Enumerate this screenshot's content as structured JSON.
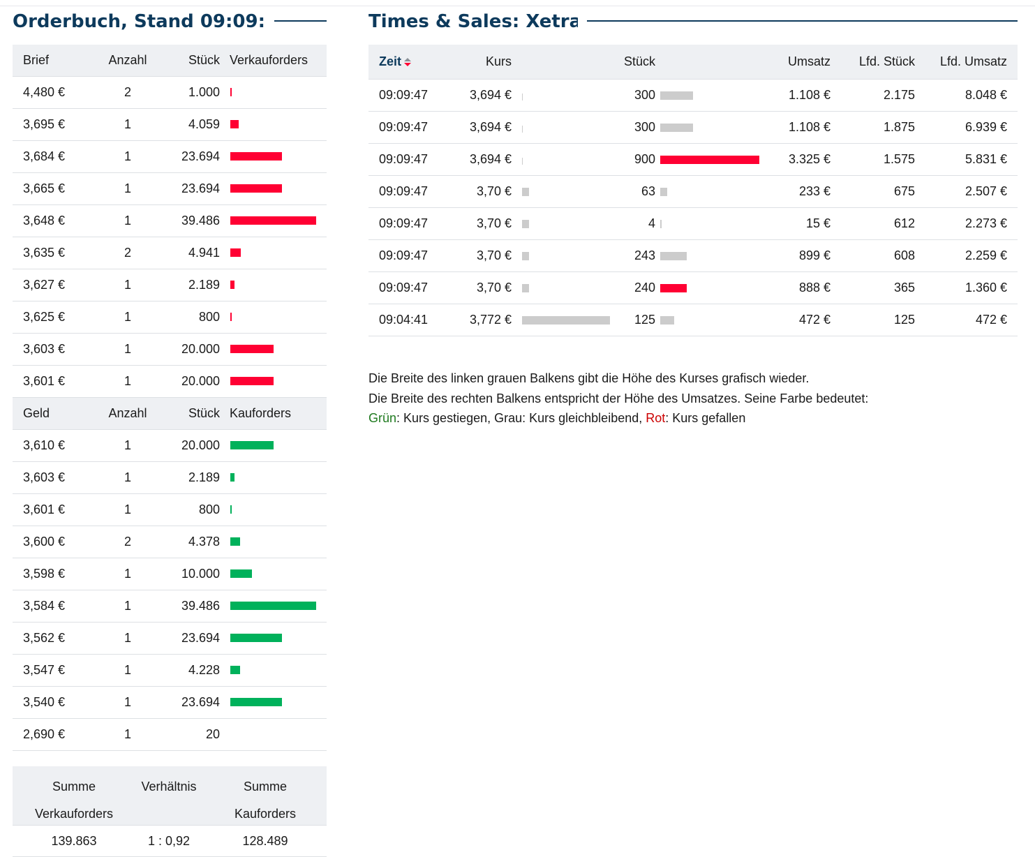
{
  "orderbook": {
    "title": "Orderbuch, Stand 09:09:...",
    "ask_header": {
      "price": "Brief",
      "count": "Anzahl",
      "qty": "Stück",
      "orders": "Verkauforders"
    },
    "asks": [
      {
        "price": "4,480 €",
        "count": "2",
        "qty": "1.000",
        "bar": 0.01
      },
      {
        "price": "3,695 €",
        "count": "1",
        "qty": "4.059",
        "bar": 0.1
      },
      {
        "price": "3,684 €",
        "count": "1",
        "qty": "23.694",
        "bar": 0.6
      },
      {
        "price": "3,665 €",
        "count": "1",
        "qty": "23.694",
        "bar": 0.6
      },
      {
        "price": "3,648 €",
        "count": "1",
        "qty": "39.486",
        "bar": 1.0
      },
      {
        "price": "3,635 €",
        "count": "2",
        "qty": "4.941",
        "bar": 0.12
      },
      {
        "price": "3,627 €",
        "count": "1",
        "qty": "2.189",
        "bar": 0.05
      },
      {
        "price": "3,625 €",
        "count": "1",
        "qty": "800",
        "bar": 0.01
      },
      {
        "price": "3,603 €",
        "count": "1",
        "qty": "20.000",
        "bar": 0.5
      },
      {
        "price": "3,601 €",
        "count": "1",
        "qty": "20.000",
        "bar": 0.5
      }
    ],
    "bid_header": {
      "price": "Geld",
      "count": "Anzahl",
      "qty": "Stück",
      "orders": "Kauforders"
    },
    "bids": [
      {
        "price": "3,610 €",
        "count": "1",
        "qty": "20.000",
        "bar": 0.5
      },
      {
        "price": "3,603 €",
        "count": "1",
        "qty": "2.189",
        "bar": 0.05
      },
      {
        "price": "3,601 €",
        "count": "1",
        "qty": "800",
        "bar": 0.01
      },
      {
        "price": "3,600 €",
        "count": "2",
        "qty": "4.378",
        "bar": 0.11
      },
      {
        "price": "3,598 €",
        "count": "1",
        "qty": "10.000",
        "bar": 0.25
      },
      {
        "price": "3,584 €",
        "count": "1",
        "qty": "39.486",
        "bar": 1.0
      },
      {
        "price": "3,562 €",
        "count": "1",
        "qty": "23.694",
        "bar": 0.6
      },
      {
        "price": "3,547 €",
        "count": "1",
        "qty": "4.228",
        "bar": 0.11
      },
      {
        "price": "3,540 €",
        "count": "1",
        "qty": "23.694",
        "bar": 0.6
      },
      {
        "price": "2,690 €",
        "count": "1",
        "qty": "20",
        "bar": 0
      }
    ],
    "summary": {
      "sum_sell_label_1": "Summe",
      "sum_sell_label_2": "Verkauforders",
      "ratio_label": "Verhältnis",
      "sum_buy_label_1": "Summe",
      "sum_buy_label_2": "Kauforders",
      "sum_sell": "139.863",
      "ratio": "1 : 0,92",
      "sum_buy": "128.489"
    }
  },
  "times_sales": {
    "title": "Times & Sales: Xetra",
    "header": {
      "time": "Zeit",
      "price": "Kurs",
      "qty": "Stück",
      "turnover": "Umsatz",
      "cum_qty": "Lfd. Stück",
      "cum_turnover": "Lfd. Umsatz"
    },
    "rows": [
      {
        "time": "09:09:47",
        "price": "3,694 €",
        "price_bar": 0.01,
        "qty": "300",
        "qty_bar": 0.33,
        "qty_color": "grey",
        "turnover": "1.108 €",
        "cum_qty": "2.175",
        "cum_turnover": "8.048 €"
      },
      {
        "time": "09:09:47",
        "price": "3,694 €",
        "price_bar": 0.01,
        "qty": "300",
        "qty_bar": 0.33,
        "qty_color": "grey",
        "turnover": "1.108 €",
        "cum_qty": "1.875",
        "cum_turnover": "6.939 €"
      },
      {
        "time": "09:09:47",
        "price": "3,694 €",
        "price_bar": 0.01,
        "qty": "900",
        "qty_bar": 1.0,
        "qty_color": "red",
        "turnover": "3.325 €",
        "cum_qty": "1.575",
        "cum_turnover": "5.831 €"
      },
      {
        "time": "09:09:47",
        "price": "3,70 €",
        "price_bar": 0.08,
        "qty": "63",
        "qty_bar": 0.07,
        "qty_color": "grey",
        "turnover": "233 €",
        "cum_qty": "675",
        "cum_turnover": "2.507 €"
      },
      {
        "time": "09:09:47",
        "price": "3,70 €",
        "price_bar": 0.08,
        "qty": "4",
        "qty_bar": 0.01,
        "qty_color": "grey",
        "turnover": "15 €",
        "cum_qty": "612",
        "cum_turnover": "2.273 €"
      },
      {
        "time": "09:09:47",
        "price": "3,70 €",
        "price_bar": 0.08,
        "qty": "243",
        "qty_bar": 0.27,
        "qty_color": "grey",
        "turnover": "899 €",
        "cum_qty": "608",
        "cum_turnover": "2.259 €"
      },
      {
        "time": "09:09:47",
        "price": "3,70 €",
        "price_bar": 0.08,
        "qty": "240",
        "qty_bar": 0.27,
        "qty_color": "red",
        "turnover": "888 €",
        "cum_qty": "365",
        "cum_turnover": "1.360 €"
      },
      {
        "time": "09:04:41",
        "price": "3,772 €",
        "price_bar": 1.0,
        "qty": "125",
        "qty_bar": 0.14,
        "qty_color": "grey",
        "turnover": "472 €",
        "cum_qty": "125",
        "cum_turnover": "472 €"
      }
    ],
    "legend": {
      "line1": "Die Breite des linken grauen Balkens gibt die Höhe des Kurses grafisch wieder.",
      "line2": "Die Breite des rechten Balkens entspricht der Höhe des Umsatzes. Seine Farbe bedeutet:",
      "green_word": "Grün",
      "green_text": ": Kurs gestiegen, Grau: Kurs gleichbleibend, ",
      "red_word": "Rot",
      "red_text": ": Kurs gefallen"
    }
  },
  "colors": {
    "title": "#0d3a5c",
    "sell": "#ff0033",
    "buy": "#00b15b",
    "neutral": "#cccccc",
    "header_bg": "#eef0f3"
  }
}
